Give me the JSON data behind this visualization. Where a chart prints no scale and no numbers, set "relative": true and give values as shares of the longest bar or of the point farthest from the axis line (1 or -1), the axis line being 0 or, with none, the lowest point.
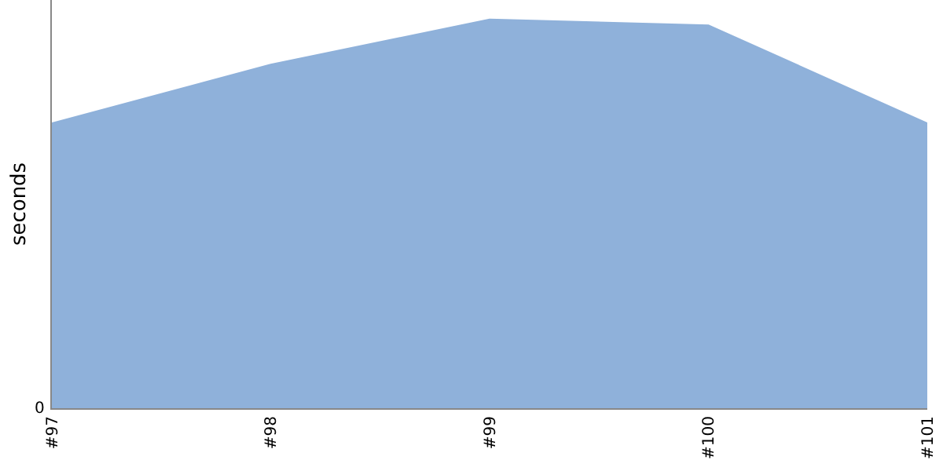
{
  "chart_data": {
    "type": "area",
    "ylabel": "seconds",
    "relative": true,
    "categories": [
      "#97",
      "#98",
      "#99",
      "#100",
      "#101"
    ],
    "annotations": [
      "0"
    ],
    "series": [
      {
        "color": "#8fb1da",
        "values": [
          0.733,
          0.884,
          1,
          0.985,
          0.733
        ]
      }
    ]
  }
}
